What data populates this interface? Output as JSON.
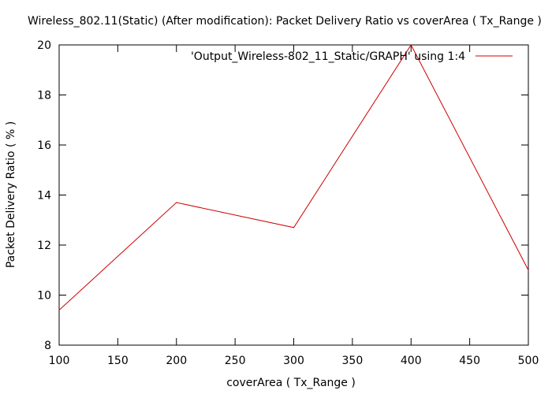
{
  "chart_data": {
    "type": "line",
    "title": "Wireless_802.11(Static) (After modification): Packet Delivery Ratio vs coverArea ( Tx_Range )",
    "xlabel": "coverArea ( Tx_Range )",
    "ylabel": "Packet Delivery Ratio ( % )",
    "xlim": [
      100,
      500
    ],
    "ylim": [
      8,
      20
    ],
    "x_ticks": [
      "100",
      "150",
      "200",
      "250",
      "300",
      "350",
      "400",
      "450",
      "500"
    ],
    "y_ticks": [
      "8",
      "10",
      "12",
      "14",
      "16",
      "18",
      "20"
    ],
    "grid": false,
    "legend_position": "top-right",
    "series": [
      {
        "name": "'Output_Wireless-802_11_Static/GRAPH' using 1:4",
        "color": "#cc0000",
        "x": [
          100,
          200,
          300,
          400,
          500
        ],
        "y": [
          9.4,
          13.7,
          12.7,
          20.0,
          11.0
        ]
      }
    ]
  }
}
